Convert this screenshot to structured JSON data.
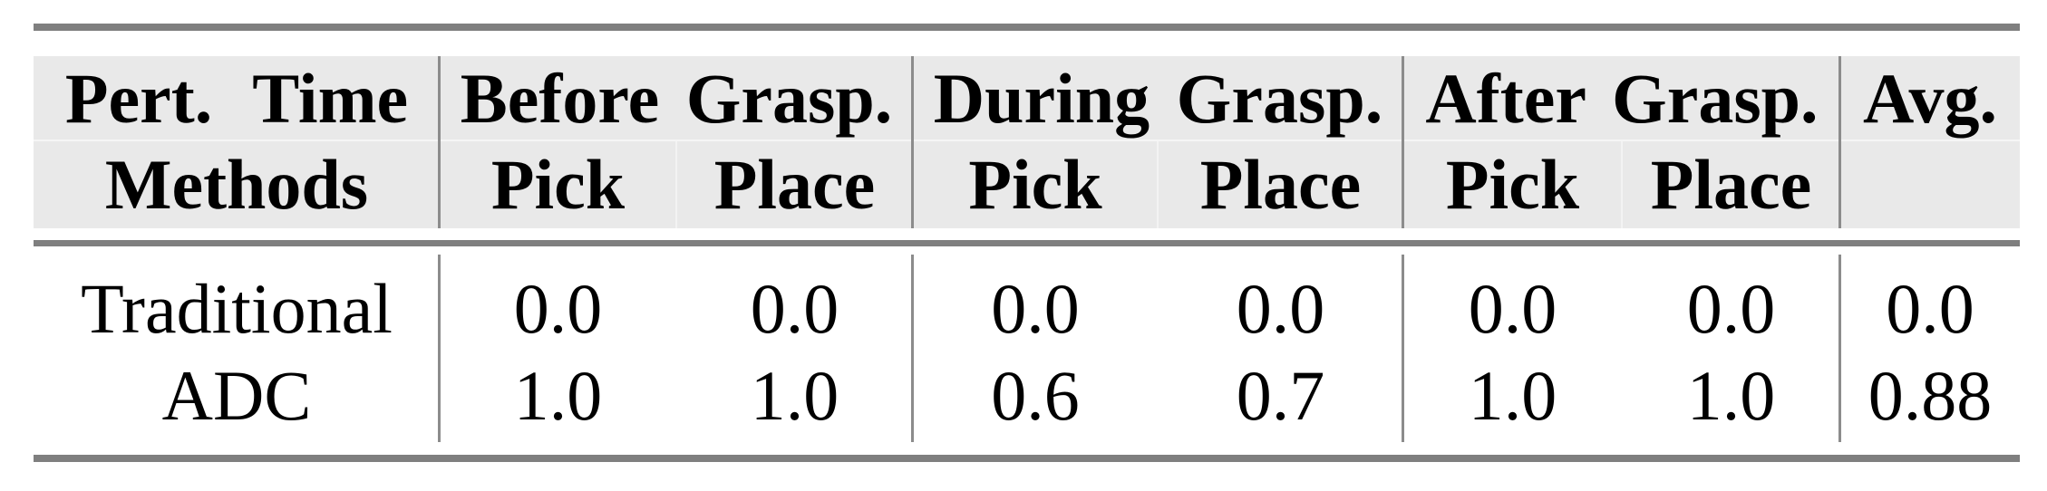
{
  "table": {
    "title_hint": "Success rates under perturbation at different grasping phases",
    "header": {
      "row1": [
        "Pert. Time",
        "Before Grasp.",
        "During Grasp.",
        "After Grasp.",
        "Avg."
      ],
      "row2": [
        "Methods",
        "Pick",
        "Place",
        "Pick",
        "Place",
        "Pick",
        "Place",
        ""
      ]
    },
    "rows": [
      {
        "method": "Traditional",
        "values": [
          "0.0",
          "0.0",
          "0.0",
          "0.0",
          "0.0",
          "0.0",
          "0.0"
        ]
      },
      {
        "method": "ADC",
        "values": [
          "1.0",
          "1.0",
          "0.6",
          "0.7",
          "1.0",
          "1.0",
          "0.88"
        ]
      }
    ],
    "colors": {
      "rule_gray": "#7f7f7f",
      "divider_gray": "#8c8c8c",
      "header_bg": "#e9e9e9",
      "text": "#000000"
    }
  }
}
